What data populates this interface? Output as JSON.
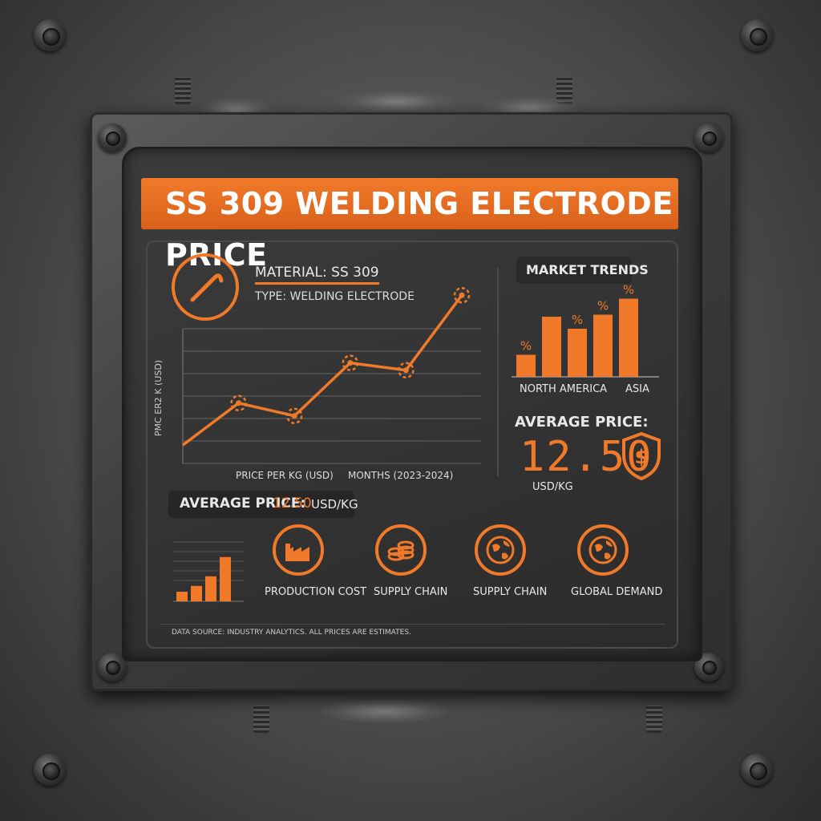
{
  "header": {
    "title": "SS 309 WELDING ELECTRODE PRICE"
  },
  "specs": {
    "material": "MATERIAL: SS 309",
    "type": "TYPE: WELDING ELECTRODE"
  },
  "line_chart": {
    "ylabel": "PMC ER2 K (USD)",
    "xlabel": "PRICE PER KG (USD)",
    "xlabel2": "MONTHS (2023-2024)"
  },
  "market_trends": {
    "title": "MARKET TRENDS",
    "label_left": "NORTH AMERICA",
    "label_right": "ASIA",
    "percent_symbol": "%"
  },
  "avg_price_card": {
    "label": "AVERAGE PRICE:",
    "value": "12.50",
    "unit": "USD/KG"
  },
  "avg_price_pill": {
    "label": "AVERAGE PRICE:",
    "value": "12.50",
    "unit": "USD/KG"
  },
  "factors": [
    {
      "label": "PRODUCTION COST",
      "icon": "factory-icon"
    },
    {
      "label": "SUPPLY CHAIN",
      "icon": "coins-icon"
    },
    {
      "label": "SUPPLY CHAIN",
      "icon": "globe-icon"
    },
    {
      "label": "GLOBAL DEMAND",
      "icon": "globe-icon"
    }
  ],
  "footer": {
    "note": "DATA SOURCE: INDUSTRY ANALYTICS. ALL PRICES ARE ESTIMATES."
  },
  "colors": {
    "accent": "#f07a2a",
    "panel": "#333333",
    "text": "#e8e8e8"
  },
  "chart_data": [
    {
      "type": "line",
      "x": [
        0,
        1,
        2,
        3,
        4,
        5
      ],
      "values": [
        1.0,
        3.3,
        2.6,
        5.5,
        5.1,
        9.2
      ],
      "markers": [
        1,
        2,
        3,
        4,
        5
      ]
    },
    {
      "type": "bar",
      "values": [
        2.2,
        6.0,
        4.8,
        6.2,
        7.8
      ],
      "percent_labels": [
        0,
        2,
        3,
        4
      ]
    },
    {
      "type": "bar",
      "values": [
        1,
        1.6,
        2.6,
        4.6
      ]
    }
  ]
}
